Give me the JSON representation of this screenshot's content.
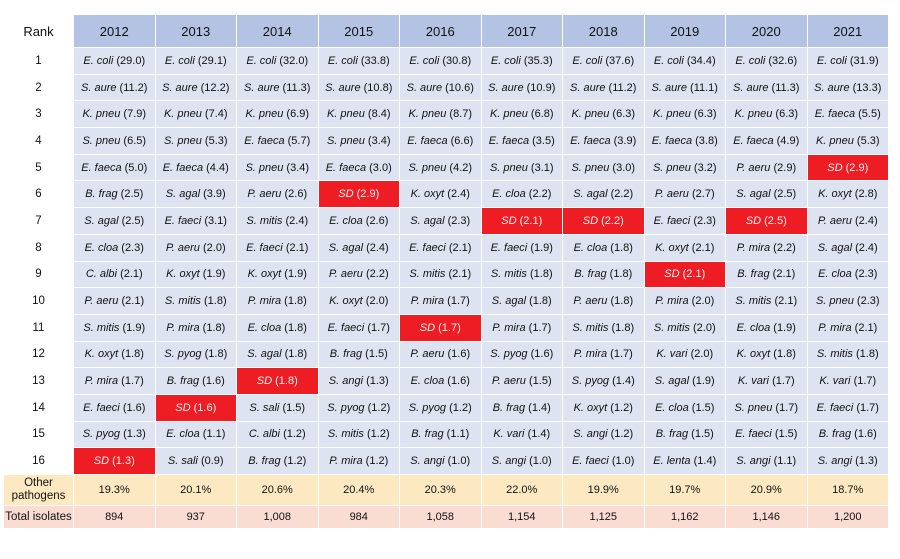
{
  "header": {
    "rank_label": "Rank",
    "years": [
      "2012",
      "2013",
      "2014",
      "2015",
      "2016",
      "2017",
      "2018",
      "2019",
      "2020",
      "2021"
    ]
  },
  "rows": [
    {
      "rank": "1",
      "cells": [
        {
          "sp": "E. coli",
          "val": "(29.0)",
          "sd": false
        },
        {
          "sp": "E. coli",
          "val": "(29.1)",
          "sd": false
        },
        {
          "sp": "E. coli",
          "val": "(32.0)",
          "sd": false
        },
        {
          "sp": "E. coli",
          "val": "(33.8)",
          "sd": false
        },
        {
          "sp": "E. coli",
          "val": "(30.8)",
          "sd": false
        },
        {
          "sp": "E. coli",
          "val": "(35.3)",
          "sd": false
        },
        {
          "sp": "E. coli",
          "val": "(37.6)",
          "sd": false
        },
        {
          "sp": "E. coli",
          "val": "(34.4)",
          "sd": false
        },
        {
          "sp": "E. coli",
          "val": "(32.6)",
          "sd": false
        },
        {
          "sp": "E. coli",
          "val": "(31.9)",
          "sd": false
        }
      ]
    },
    {
      "rank": "2",
      "cells": [
        {
          "sp": "S. aure",
          "val": "(11.2)",
          "sd": false
        },
        {
          "sp": "S. aure",
          "val": "(12.2)",
          "sd": false
        },
        {
          "sp": "S. aure",
          "val": "(11.3)",
          "sd": false
        },
        {
          "sp": "S. aure",
          "val": "(10.8)",
          "sd": false
        },
        {
          "sp": "S. aure",
          "val": "(10.6)",
          "sd": false
        },
        {
          "sp": "S. aure",
          "val": "(10.9)",
          "sd": false
        },
        {
          "sp": "S. aure",
          "val": "(11.2)",
          "sd": false
        },
        {
          "sp": "S. aure",
          "val": "(11.1)",
          "sd": false
        },
        {
          "sp": "S. aure",
          "val": "(11.3)",
          "sd": false
        },
        {
          "sp": "S. aure",
          "val": "(13.3)",
          "sd": false
        }
      ]
    },
    {
      "rank": "3",
      "cells": [
        {
          "sp": "K. pneu",
          "val": "(7.9)",
          "sd": false
        },
        {
          "sp": "K. pneu",
          "val": "(7.4)",
          "sd": false
        },
        {
          "sp": "K. pneu",
          "val": "(6.9)",
          "sd": false
        },
        {
          "sp": "K. pneu",
          "val": "(8.4)",
          "sd": false
        },
        {
          "sp": "K. pneu",
          "val": "(8.7)",
          "sd": false
        },
        {
          "sp": "K. pneu",
          "val": "(6.8)",
          "sd": false
        },
        {
          "sp": "K. pneu",
          "val": "(6.3)",
          "sd": false
        },
        {
          "sp": "K. pneu",
          "val": "(6.3)",
          "sd": false
        },
        {
          "sp": "K. pneu",
          "val": "(6.3)",
          "sd": false
        },
        {
          "sp": "E. faeca",
          "val": "(5.5)",
          "sd": false
        }
      ]
    },
    {
      "rank": "4",
      "cells": [
        {
          "sp": "S. pneu",
          "val": "(6.5)",
          "sd": false
        },
        {
          "sp": "S. pneu",
          "val": "(5.3)",
          "sd": false
        },
        {
          "sp": "E. faeca",
          "val": "(5.7)",
          "sd": false
        },
        {
          "sp": "S. pneu",
          "val": "(3.4)",
          "sd": false
        },
        {
          "sp": "E. faeca",
          "val": "(6.6)",
          "sd": false
        },
        {
          "sp": "E. faeca",
          "val": "(3.5)",
          "sd": false
        },
        {
          "sp": "E. faeca",
          "val": "(3.9)",
          "sd": false
        },
        {
          "sp": "E. faeca",
          "val": "(3.8)",
          "sd": false
        },
        {
          "sp": "E. faeca",
          "val": "(4.9)",
          "sd": false
        },
        {
          "sp": "K. pneu",
          "val": "(5.3)",
          "sd": false
        }
      ]
    },
    {
      "rank": "5",
      "cells": [
        {
          "sp": "E. faeca",
          "val": "(5.0)",
          "sd": false
        },
        {
          "sp": "E. faeca",
          "val": "(4.4)",
          "sd": false
        },
        {
          "sp": "S. pneu",
          "val": "(3.4)",
          "sd": false
        },
        {
          "sp": "E. faeca",
          "val": "(3.0)",
          "sd": false
        },
        {
          "sp": "S. pneu",
          "val": "(4.2)",
          "sd": false
        },
        {
          "sp": "S. pneu",
          "val": "(3.1)",
          "sd": false
        },
        {
          "sp": "S. pneu",
          "val": "(3.0)",
          "sd": false
        },
        {
          "sp": "S. pneu",
          "val": "(3.2)",
          "sd": false
        },
        {
          "sp": "P. aeru",
          "val": "(2.9)",
          "sd": false
        },
        {
          "sp": "SD",
          "val": "(2.9)",
          "sd": true
        }
      ]
    },
    {
      "rank": "6",
      "cells": [
        {
          "sp": "B. frag",
          "val": "(2.5)",
          "sd": false
        },
        {
          "sp": "S. agal",
          "val": "(3.9)",
          "sd": false
        },
        {
          "sp": "P. aeru",
          "val": "(2.6)",
          "sd": false
        },
        {
          "sp": "SD",
          "val": "(2.9)",
          "sd": true
        },
        {
          "sp": "K. oxyt",
          "val": "(2.4)",
          "sd": false
        },
        {
          "sp": "E. cloa",
          "val": "(2.2)",
          "sd": false
        },
        {
          "sp": "S. agal",
          "val": "(2.2)",
          "sd": false
        },
        {
          "sp": "P. aeru",
          "val": "(2.7)",
          "sd": false
        },
        {
          "sp": "S. agal",
          "val": "(2.5)",
          "sd": false
        },
        {
          "sp": "K. oxyt",
          "val": "(2.8)",
          "sd": false
        }
      ]
    },
    {
      "rank": "7",
      "cells": [
        {
          "sp": "S. agal",
          "val": "(2.5)",
          "sd": false
        },
        {
          "sp": "E. faeci",
          "val": "(3.1)",
          "sd": false
        },
        {
          "sp": "S. mitis",
          "val": "(2.4)",
          "sd": false
        },
        {
          "sp": "E. cloa",
          "val": "(2.6)",
          "sd": false
        },
        {
          "sp": "S. agal",
          "val": "(2.3)",
          "sd": false
        },
        {
          "sp": "SD",
          "val": "(2.1)",
          "sd": true
        },
        {
          "sp": "SD",
          "val": "(2.2)",
          "sd": true
        },
        {
          "sp": "E. faeci",
          "val": "(2.3)",
          "sd": false
        },
        {
          "sp": "SD",
          "val": "(2.5)",
          "sd": true
        },
        {
          "sp": "P. aeru",
          "val": "(2.4)",
          "sd": false
        }
      ]
    },
    {
      "rank": "8",
      "cells": [
        {
          "sp": "E. cloa",
          "val": "(2.3)",
          "sd": false
        },
        {
          "sp": "P. aeru",
          "val": "(2.0)",
          "sd": false
        },
        {
          "sp": "E. faeci",
          "val": "(2.1)",
          "sd": false
        },
        {
          "sp": "S. agal",
          "val": "(2.4)",
          "sd": false
        },
        {
          "sp": "E. faeci",
          "val": "(2.1)",
          "sd": false
        },
        {
          "sp": "E. faeci",
          "val": "(1.9)",
          "sd": false
        },
        {
          "sp": "E. cloa",
          "val": "(1.8)",
          "sd": false
        },
        {
          "sp": "K. oxyt",
          "val": "(2.1)",
          "sd": false
        },
        {
          "sp": "P. mira",
          "val": "(2.2)",
          "sd": false
        },
        {
          "sp": "S. agal",
          "val": "(2.4)",
          "sd": false
        }
      ]
    },
    {
      "rank": "9",
      "cells": [
        {
          "sp": "C. albi",
          "val": "(2.1)",
          "sd": false
        },
        {
          "sp": "K. oxyt",
          "val": "(1.9)",
          "sd": false
        },
        {
          "sp": "K. oxyt",
          "val": "(1.9)",
          "sd": false
        },
        {
          "sp": "P. aeru",
          "val": "(2.2)",
          "sd": false
        },
        {
          "sp": "S. mitis",
          "val": "(2.1)",
          "sd": false
        },
        {
          "sp": "S. mitis",
          "val": "(1.8)",
          "sd": false
        },
        {
          "sp": "B. frag",
          "val": "(1.8)",
          "sd": false
        },
        {
          "sp": "SD",
          "val": "(2.1)",
          "sd": true
        },
        {
          "sp": "B. frag",
          "val": "(2.1)",
          "sd": false
        },
        {
          "sp": "E. cloa",
          "val": "(2.3)",
          "sd": false
        }
      ]
    },
    {
      "rank": "10",
      "cells": [
        {
          "sp": "P. aeru",
          "val": "(2.1)",
          "sd": false
        },
        {
          "sp": "S. mitis",
          "val": "(1.8)",
          "sd": false
        },
        {
          "sp": "P. mira",
          "val": "(1.8)",
          "sd": false
        },
        {
          "sp": "K. oxyt",
          "val": "(2.0)",
          "sd": false
        },
        {
          "sp": "P. mira",
          "val": "(1.7)",
          "sd": false
        },
        {
          "sp": "S. agal",
          "val": "(1.8)",
          "sd": false
        },
        {
          "sp": "P. aeru",
          "val": "(1.8)",
          "sd": false
        },
        {
          "sp": "P. mira",
          "val": "(2.0)",
          "sd": false
        },
        {
          "sp": "S. mitis",
          "val": "(2.1)",
          "sd": false
        },
        {
          "sp": "S. pneu",
          "val": "(2.3)",
          "sd": false
        }
      ]
    },
    {
      "rank": "11",
      "cells": [
        {
          "sp": "S. mitis",
          "val": "(1.9)",
          "sd": false
        },
        {
          "sp": "P. mira",
          "val": "(1.8)",
          "sd": false
        },
        {
          "sp": "E. cloa",
          "val": "(1.8)",
          "sd": false
        },
        {
          "sp": "E. faeci",
          "val": "(1.7)",
          "sd": false
        },
        {
          "sp": "SD",
          "val": "(1.7)",
          "sd": true
        },
        {
          "sp": "P. mira",
          "val": "(1.7)",
          "sd": false
        },
        {
          "sp": "S. mitis",
          "val": "(1.8)",
          "sd": false
        },
        {
          "sp": "S. mitis",
          "val": "(2.0)",
          "sd": false
        },
        {
          "sp": "E. cloa",
          "val": "(1.9)",
          "sd": false
        },
        {
          "sp": "P. mira",
          "val": "(2.1)",
          "sd": false
        }
      ]
    },
    {
      "rank": "12",
      "cells": [
        {
          "sp": "K. oxyt",
          "val": "(1.8)",
          "sd": false
        },
        {
          "sp": "S. pyog",
          "val": "(1.8)",
          "sd": false
        },
        {
          "sp": "S. agal",
          "val": "(1.8)",
          "sd": false
        },
        {
          "sp": "B. frag",
          "val": "(1.5)",
          "sd": false
        },
        {
          "sp": "P. aeru",
          "val": "(1.6)",
          "sd": false
        },
        {
          "sp": "S. pyog",
          "val": "(1.6)",
          "sd": false
        },
        {
          "sp": "P. mira",
          "val": "(1.7)",
          "sd": false
        },
        {
          "sp": "K. vari",
          "val": "(2.0)",
          "sd": false
        },
        {
          "sp": "K. oxyt",
          "val": "(1.8)",
          "sd": false
        },
        {
          "sp": "S. mitis",
          "val": "(1.8)",
          "sd": false
        }
      ]
    },
    {
      "rank": "13",
      "cells": [
        {
          "sp": "P. mira",
          "val": "(1.7)",
          "sd": false
        },
        {
          "sp": "B. frag",
          "val": "(1.6)",
          "sd": false
        },
        {
          "sp": "SD",
          "val": "(1.8)",
          "sd": true
        },
        {
          "sp": "S. angi",
          "val": "(1.3)",
          "sd": false
        },
        {
          "sp": "E. cloa",
          "val": "(1.6)",
          "sd": false
        },
        {
          "sp": "P. aeru",
          "val": "(1.5)",
          "sd": false
        },
        {
          "sp": "S. pyog",
          "val": "(1.4)",
          "sd": false
        },
        {
          "sp": "S. agal",
          "val": "(1.9)",
          "sd": false
        },
        {
          "sp": "K. vari",
          "val": "(1.7)",
          "sd": false
        },
        {
          "sp": "K. vari",
          "val": "(1.7)",
          "sd": false
        }
      ]
    },
    {
      "rank": "14",
      "cells": [
        {
          "sp": "E. faeci",
          "val": "(1.6)",
          "sd": false
        },
        {
          "sp": "SD",
          "val": "(1.6)",
          "sd": true
        },
        {
          "sp": "S. sali",
          "val": "(1.5)",
          "sd": false
        },
        {
          "sp": "S. pyog",
          "val": "(1.2)",
          "sd": false
        },
        {
          "sp": "S. pyog",
          "val": "(1.2)",
          "sd": false
        },
        {
          "sp": "B. frag",
          "val": "(1.4)",
          "sd": false
        },
        {
          "sp": "K. oxyt",
          "val": "(1.2)",
          "sd": false
        },
        {
          "sp": "E. cloa",
          "val": "(1.5)",
          "sd": false
        },
        {
          "sp": "S. pneu",
          "val": "(1.7)",
          "sd": false
        },
        {
          "sp": "E. faeci",
          "val": "(1.7)",
          "sd": false
        }
      ]
    },
    {
      "rank": "15",
      "cells": [
        {
          "sp": "S. pyog",
          "val": "(1.3)",
          "sd": false
        },
        {
          "sp": "E. cloa",
          "val": "(1.1)",
          "sd": false
        },
        {
          "sp": "C. albi",
          "val": "(1.2)",
          "sd": false
        },
        {
          "sp": "S. mitis",
          "val": "(1.2)",
          "sd": false
        },
        {
          "sp": "B. frag",
          "val": "(1.1)",
          "sd": false
        },
        {
          "sp": "K. vari",
          "val": "(1.4)",
          "sd": false
        },
        {
          "sp": "S. angi",
          "val": "(1.2)",
          "sd": false
        },
        {
          "sp": "B. frag",
          "val": "(1.5)",
          "sd": false
        },
        {
          "sp": "E. faeci",
          "val": "(1.5)",
          "sd": false
        },
        {
          "sp": "B. frag",
          "val": "(1.6)",
          "sd": false
        }
      ]
    },
    {
      "rank": "16",
      "cells": [
        {
          "sp": "SD",
          "val": "(1.3)",
          "sd": true
        },
        {
          "sp": "S. sali",
          "val": "(0.9)",
          "sd": false
        },
        {
          "sp": "B. frag",
          "val": "(1.2)",
          "sd": false
        },
        {
          "sp": "P. mira",
          "val": "(1.2)",
          "sd": false
        },
        {
          "sp": "S. angi",
          "val": "(1.0)",
          "sd": false
        },
        {
          "sp": "S. angi",
          "val": "(1.0)",
          "sd": false
        },
        {
          "sp": "E. faeci",
          "val": "(1.0)",
          "sd": false
        },
        {
          "sp": "E. lenta",
          "val": "(1.4)",
          "sd": false
        },
        {
          "sp": "S. angi",
          "val": "(1.1)",
          "sd": false
        },
        {
          "sp": "S. angi",
          "val": "(1.3)",
          "sd": false
        }
      ]
    }
  ],
  "other": {
    "label_line1": "Other",
    "label_line2": "pathogens",
    "values": [
      "19.3%",
      "20.1%",
      "20.6%",
      "20.4%",
      "20.3%",
      "22.0%",
      "19.9%",
      "19.7%",
      "20.9%",
      "18.7%"
    ]
  },
  "total": {
    "label": "Total isolates",
    "values": [
      "894",
      "937",
      "1,008",
      "984",
      "1,058",
      "1,154",
      "1,125",
      "1,162",
      "1,146",
      "1,200"
    ]
  },
  "colors": {
    "header_bg": "#b4c3e4",
    "cell_bg": "#dde3f1",
    "sd_highlight": "#ee1c23",
    "other_row_bg": "#fde9c1",
    "total_row_bg": "#f9ddd2"
  }
}
